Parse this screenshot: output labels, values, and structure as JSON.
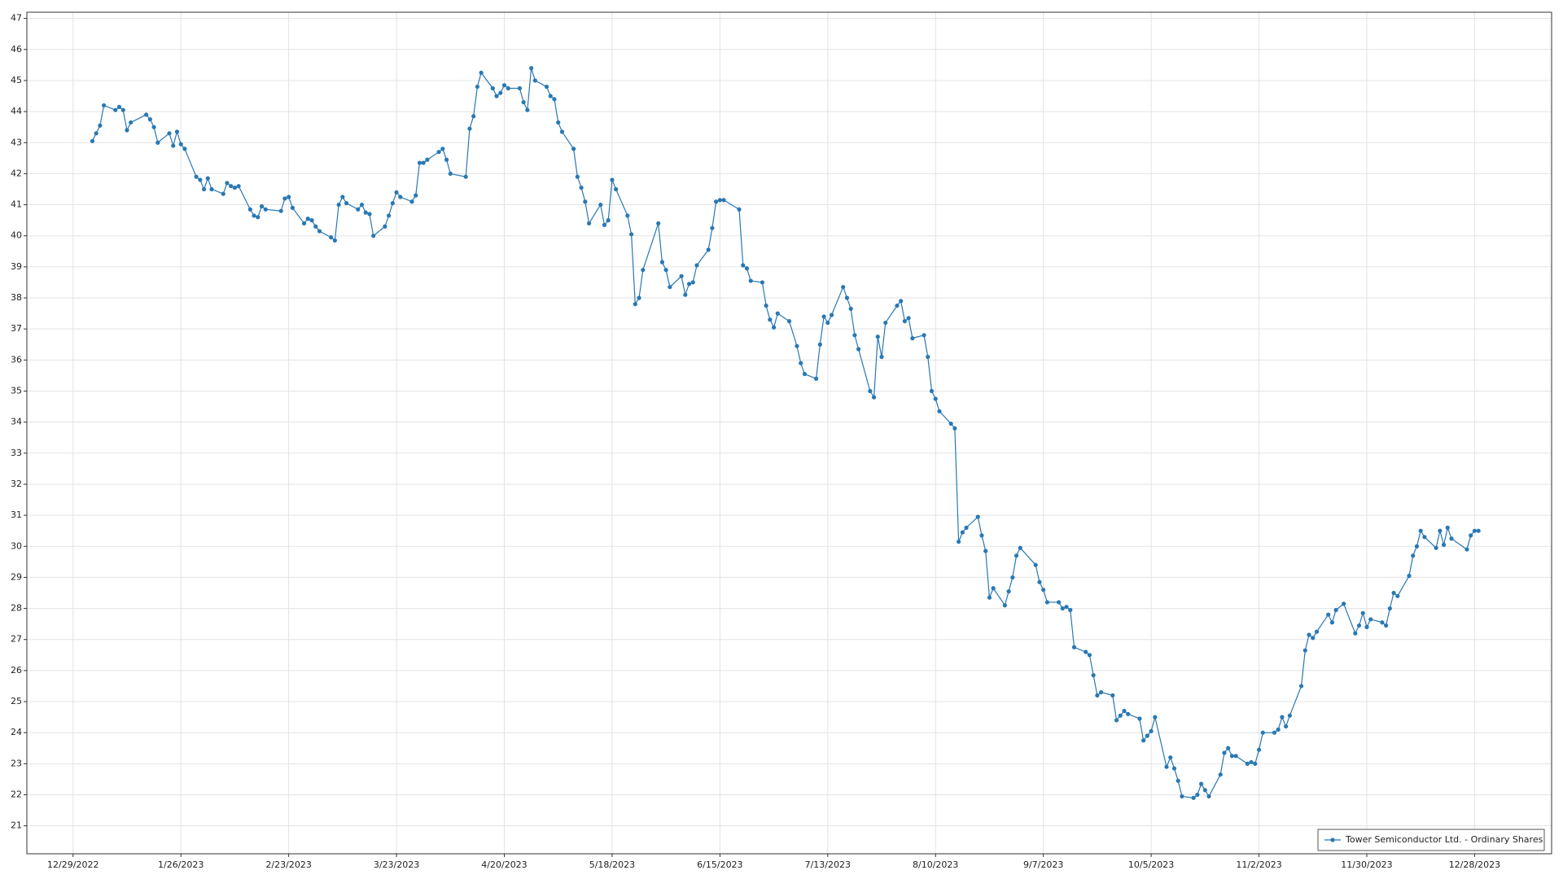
{
  "chart_data": {
    "type": "line",
    "x": [
      "1/3/2023",
      "1/4/2023",
      "1/5/2023",
      "1/6/2023",
      "1/9/2023",
      "1/10/2023",
      "1/11/2023",
      "1/12/2023",
      "1/13/2023",
      "1/17/2023",
      "1/18/2023",
      "1/19/2023",
      "1/20/2023",
      "1/23/2023",
      "1/24/2023",
      "1/25/2023",
      "1/26/2023",
      "1/27/2023",
      "1/30/2023",
      "1/31/2023",
      "2/1/2023",
      "2/2/2023",
      "2/3/2023",
      "2/6/2023",
      "2/7/2023",
      "2/8/2023",
      "2/9/2023",
      "2/10/2023",
      "2/13/2023",
      "2/14/2023",
      "2/15/2023",
      "2/16/2023",
      "2/17/2023",
      "2/21/2023",
      "2/22/2023",
      "2/23/2023",
      "2/24/2023",
      "2/27/2023",
      "2/28/2023",
      "3/1/2023",
      "3/2/2023",
      "3/3/2023",
      "3/6/2023",
      "3/7/2023",
      "3/8/2023",
      "3/9/2023",
      "3/10/2023",
      "3/13/2023",
      "3/14/2023",
      "3/15/2023",
      "3/16/2023",
      "3/17/2023",
      "3/20/2023",
      "3/21/2023",
      "3/22/2023",
      "3/23/2023",
      "3/24/2023",
      "3/27/2023",
      "3/28/2023",
      "3/29/2023",
      "3/30/2023",
      "3/31/2023",
      "4/3/2023",
      "4/4/2023",
      "4/5/2023",
      "4/6/2023",
      "4/10/2023",
      "4/11/2023",
      "4/12/2023",
      "4/13/2023",
      "4/14/2023",
      "4/17/2023",
      "4/18/2023",
      "4/19/2023",
      "4/20/2023",
      "4/21/2023",
      "4/24/2023",
      "4/25/2023",
      "4/26/2023",
      "4/27/2023",
      "4/28/2023",
      "5/1/2023",
      "5/2/2023",
      "5/3/2023",
      "5/4/2023",
      "5/5/2023",
      "5/8/2023",
      "5/9/2023",
      "5/10/2023",
      "5/11/2023",
      "5/12/2023",
      "5/15/2023",
      "5/16/2023",
      "5/17/2023",
      "5/18/2023",
      "5/19/2023",
      "5/22/2023",
      "5/23/2023",
      "5/24/2023",
      "5/25/2023",
      "5/26/2023",
      "5/30/2023",
      "5/31/2023",
      "6/1/2023",
      "6/2/2023",
      "6/5/2023",
      "6/6/2023",
      "6/7/2023",
      "6/8/2023",
      "6/9/2023",
      "6/12/2023",
      "6/13/2023",
      "6/14/2023",
      "6/15/2023",
      "6/16/2023",
      "6/20/2023",
      "6/21/2023",
      "6/22/2023",
      "6/23/2023",
      "6/26/2023",
      "6/27/2023",
      "6/28/2023",
      "6/29/2023",
      "6/30/2023",
      "7/3/2023",
      "7/5/2023",
      "7/6/2023",
      "7/7/2023",
      "7/10/2023",
      "7/11/2023",
      "7/12/2023",
      "7/13/2023",
      "7/14/2023",
      "7/17/2023",
      "7/18/2023",
      "7/19/2023",
      "7/20/2023",
      "7/21/2023",
      "7/24/2023",
      "7/25/2023",
      "7/26/2023",
      "7/27/2023",
      "7/28/2023",
      "7/31/2023",
      "8/1/2023",
      "8/2/2023",
      "8/3/2023",
      "8/4/2023",
      "8/7/2023",
      "8/8/2023",
      "8/9/2023",
      "8/10/2023",
      "8/11/2023",
      "8/14/2023",
      "8/15/2023",
      "8/16/2023",
      "8/17/2023",
      "8/18/2023",
      "8/21/2023",
      "8/22/2023",
      "8/23/2023",
      "8/24/2023",
      "8/25/2023",
      "8/28/2023",
      "8/29/2023",
      "8/30/2023",
      "8/31/2023",
      "9/1/2023",
      "9/5/2023",
      "9/6/2023",
      "9/7/2023",
      "9/8/2023",
      "9/11/2023",
      "9/12/2023",
      "9/13/2023",
      "9/14/2023",
      "9/15/2023",
      "9/18/2023",
      "9/19/2023",
      "9/20/2023",
      "9/21/2023",
      "9/22/2023",
      "9/25/2023",
      "9/26/2023",
      "9/27/2023",
      "9/28/2023",
      "9/29/2023",
      "10/2/2023",
      "10/3/2023",
      "10/4/2023",
      "10/5/2023",
      "10/6/2023",
      "10/9/2023",
      "10/10/2023",
      "10/11/2023",
      "10/12/2023",
      "10/13/2023",
      "10/16/2023",
      "10/17/2023",
      "10/18/2023",
      "10/19/2023",
      "10/20/2023",
      "10/23/2023",
      "10/24/2023",
      "10/25/2023",
      "10/26/2023",
      "10/27/2023",
      "10/30/2023",
      "10/31/2023",
      "11/1/2023",
      "11/2/2023",
      "11/3/2023",
      "11/6/2023",
      "11/7/2023",
      "11/8/2023",
      "11/9/2023",
      "11/10/2023",
      "11/13/2023",
      "11/14/2023",
      "11/15/2023",
      "11/16/2023",
      "11/17/2023",
      "11/20/2023",
      "11/21/2023",
      "11/22/2023",
      "11/24/2023",
      "11/27/2023",
      "11/28/2023",
      "11/29/2023",
      "11/30/2023",
      "12/1/2023",
      "12/4/2023",
      "12/5/2023",
      "12/6/2023",
      "12/7/2023",
      "12/8/2023",
      "12/11/2023",
      "12/12/2023",
      "12/13/2023",
      "12/14/2023",
      "12/15/2023",
      "12/18/2023",
      "12/19/2023",
      "12/20/2023",
      "12/21/2023",
      "12/22/2023",
      "12/26/2023",
      "12/27/2023",
      "12/28/2023",
      "12/29/2023"
    ],
    "series": [
      {
        "name": "Tower Semiconductor Ltd. - Ordinary Shares",
        "color": "#2878b4",
        "values": [
          43.05,
          43.3,
          43.55,
          44.2,
          44.05,
          44.15,
          44.05,
          43.4,
          43.65,
          43.9,
          43.75,
          43.5,
          43.0,
          43.3,
          42.9,
          43.35,
          42.95,
          42.8,
          41.9,
          41.8,
          41.5,
          41.85,
          41.5,
          41.35,
          41.7,
          41.6,
          41.55,
          41.6,
          40.85,
          40.65,
          40.6,
          40.95,
          40.85,
          40.8,
          41.2,
          41.25,
          40.9,
          40.4,
          40.55,
          40.5,
          40.3,
          40.15,
          39.95,
          39.85,
          41.0,
          41.25,
          41.05,
          40.85,
          41.0,
          40.75,
          40.7,
          40.0,
          40.3,
          40.65,
          41.05,
          41.4,
          41.25,
          41.1,
          41.3,
          42.35,
          42.35,
          42.45,
          42.7,
          42.8,
          42.45,
          42.0,
          41.9,
          43.45,
          43.85,
          44.8,
          45.25,
          44.75,
          44.5,
          44.6,
          44.85,
          44.75,
          44.75,
          44.3,
          44.05,
          45.4,
          45.0,
          44.8,
          44.5,
          44.4,
          43.65,
          43.35,
          42.8,
          41.9,
          41.55,
          41.1,
          40.4,
          41.0,
          40.35,
          40.5,
          41.8,
          41.5,
          40.65,
          40.05,
          37.8,
          38.0,
          38.9,
          40.4,
          39.15,
          38.9,
          38.35,
          38.7,
          38.1,
          38.45,
          38.5,
          39.05,
          39.55,
          40.25,
          41.1,
          41.15,
          41.15,
          40.85,
          39.05,
          38.95,
          38.55,
          38.5,
          37.75,
          37.3,
          37.05,
          37.5,
          37.25,
          36.45,
          35.9,
          35.55,
          35.4,
          36.5,
          37.4,
          37.2,
          37.45,
          38.35,
          38.0,
          37.65,
          36.8,
          36.35,
          35.0,
          34.8,
          36.75,
          36.1,
          37.2,
          37.75,
          37.9,
          37.25,
          37.35,
          36.7,
          36.8,
          36.1,
          35.0,
          34.75,
          34.35,
          33.95,
          33.8,
          30.15,
          30.45,
          30.6,
          30.95,
          30.35,
          29.85,
          28.35,
          28.65,
          28.1,
          28.55,
          29.0,
          29.7,
          29.95,
          29.4,
          28.85,
          28.6,
          28.2,
          28.2,
          28.0,
          28.05,
          27.95,
          26.75,
          26.6,
          26.5,
          25.85,
          25.2,
          25.3,
          25.2,
          24.4,
          24.55,
          24.7,
          24.6,
          24.45,
          23.75,
          23.9,
          24.05,
          24.5,
          22.9,
          23.2,
          22.85,
          22.45,
          21.95,
          21.9,
          22.0,
          22.35,
          22.15,
          21.95,
          22.65,
          23.35,
          23.5,
          23.25,
          23.25,
          23.0,
          23.05,
          23.0,
          23.45,
          24.0,
          24.0,
          24.1,
          24.5,
          24.2,
          24.55,
          25.5,
          26.65,
          27.15,
          27.05,
          27.25,
          27.8,
          27.55,
          27.95,
          28.15,
          27.2,
          27.45,
          27.85,
          27.4,
          27.65,
          27.55,
          27.45,
          28.0,
          28.5,
          28.4,
          29.05,
          29.7,
          30.0,
          30.5,
          30.3,
          29.95,
          30.5,
          30.05,
          30.6,
          30.25,
          29.9,
          30.35,
          30.5,
          30.5
        ]
      }
    ],
    "xlim": [
      "12/17/2022",
      "1/17/2024"
    ],
    "xticks": [
      "12/29/2022",
      "1/26/2023",
      "2/23/2023",
      "3/23/2023",
      "4/20/2023",
      "5/18/2023",
      "6/15/2023",
      "7/13/2023",
      "8/10/2023",
      "9/7/2023",
      "10/5/2023",
      "11/2/2023",
      "11/30/2023",
      "12/28/2023"
    ],
    "ylim": [
      20.1,
      47.2
    ],
    "yticks": [
      21,
      22,
      23,
      24,
      25,
      26,
      27,
      28,
      29,
      30,
      31,
      32,
      33,
      34,
      35,
      36,
      37,
      38,
      39,
      40,
      41,
      42,
      43,
      44,
      45,
      46,
      47
    ],
    "grid": true,
    "legend": "lower right"
  }
}
